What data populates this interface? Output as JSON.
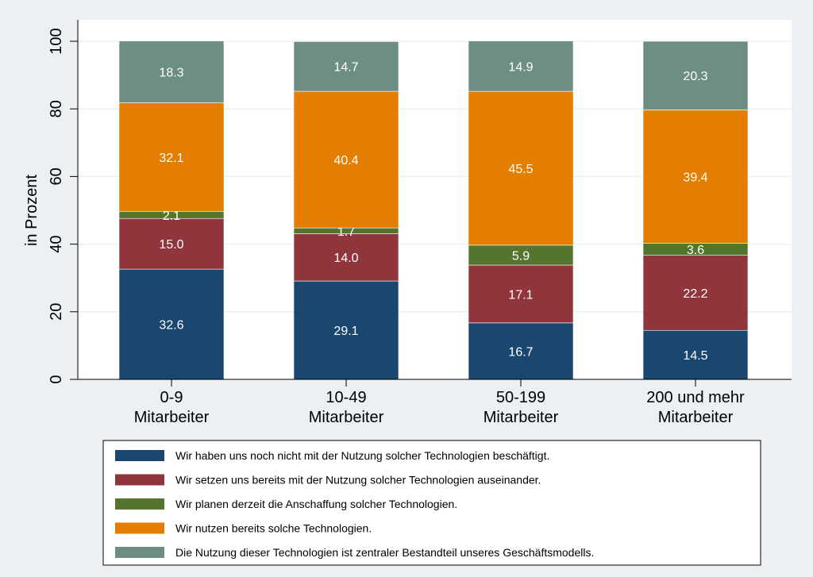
{
  "chart_data": {
    "type": "bar",
    "stacked": true,
    "title": "",
    "xlabel": "",
    "ylabel": "in Prozent",
    "ylim": [
      0,
      100
    ],
    "yticks": [
      0,
      20,
      40,
      60,
      80,
      100
    ],
    "grid": true,
    "legend_position": "bottom",
    "categories": [
      [
        "0-9",
        "Mitarbeiter"
      ],
      [
        "10-49",
        "Mitarbeiter"
      ],
      [
        "50-199",
        "Mitarbeiter"
      ],
      [
        "200 und mehr",
        "Mitarbeiter"
      ]
    ],
    "series": [
      {
        "name": "Wir haben uns noch nicht mit der Nutzung solcher Technologien beschäftigt.",
        "color": "#1a476f",
        "values": [
          32.6,
          29.1,
          16.7,
          14.5
        ]
      },
      {
        "name": "Wir setzen uns bereits mit der Nutzung solcher Technologien auseinander.",
        "color": "#90353b",
        "values": [
          15.0,
          14.0,
          17.1,
          22.2
        ]
      },
      {
        "name": "Wir planen derzeit die Anschaffung solcher Technologien.",
        "color": "#55752f",
        "values": [
          2.1,
          1.7,
          5.9,
          3.6
        ]
      },
      {
        "name": "Wir nutzen bereits solche Technologien.",
        "color": "#e37e00",
        "values": [
          32.1,
          40.4,
          45.5,
          39.4
        ]
      },
      {
        "name": "Die Nutzung dieser Technologien ist zentraler Bestandteil unseres Geschäftsmodells.",
        "color": "#6e8e84",
        "values": [
          18.3,
          14.7,
          14.9,
          20.3
        ]
      }
    ]
  }
}
